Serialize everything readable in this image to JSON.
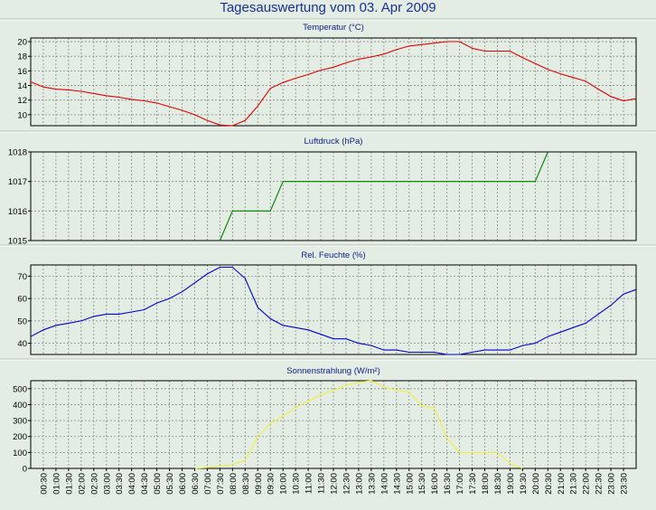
{
  "title": "Tagesauswertung vom 03. Apr 2009",
  "colors": {
    "background": "#e3ede3",
    "grid": "#8a8a8a",
    "temperature": "#e00000",
    "pressure": "#008000",
    "humidity": "#0000d0",
    "radiation": "#f0f040",
    "title": "#1a2d9c"
  },
  "chart_data": [
    {
      "type": "line",
      "title": "Temperatur (°C)",
      "ylim": [
        8.5,
        20.5
      ],
      "yticks": [
        10,
        12,
        14,
        16,
        18,
        20
      ],
      "color": "#e00000",
      "x": [
        0,
        0.5,
        1,
        1.5,
        2,
        2.5,
        3,
        3.5,
        4,
        4.5,
        5,
        5.5,
        6,
        6.5,
        7,
        7.5,
        8,
        8.5,
        9,
        9.5,
        10,
        10.5,
        11,
        11.5,
        12,
        12.5,
        13,
        13.5,
        14,
        14.5,
        15,
        15.5,
        16,
        16.5,
        17,
        17.5,
        18,
        18.5,
        19,
        19.5,
        20,
        20.5,
        21,
        21.5,
        22,
        22.5,
        23,
        23.5,
        24
      ],
      "values": [
        14.5,
        13.8,
        13.5,
        13.4,
        13.2,
        12.9,
        12.6,
        12.4,
        12.1,
        11.9,
        11.6,
        11.1,
        10.6,
        10.0,
        9.2,
        8.6,
        8.5,
        9.2,
        11.2,
        13.6,
        14.4,
        15.0,
        15.5,
        16.1,
        16.5,
        17.1,
        17.6,
        17.9,
        18.3,
        18.9,
        19.4,
        19.6,
        19.8,
        20.0,
        20.0,
        19.1,
        18.7,
        18.7,
        18.7,
        17.8,
        17.0,
        16.2,
        15.6,
        15.1,
        14.6,
        13.5,
        12.5,
        11.9,
        12.2
      ]
    },
    {
      "type": "line",
      "title": "Luftdruck (hPa)",
      "ylim": [
        1015,
        1018
      ],
      "yticks": [
        1015,
        1016,
        1017,
        1018
      ],
      "color": "#008000",
      "x": [
        7.5,
        8,
        9.5,
        10,
        20,
        20.5
      ],
      "values": [
        1015,
        1016,
        1016,
        1017,
        1017,
        1018
      ]
    },
    {
      "type": "line",
      "title": "Rel. Feuchte (%)",
      "ylim": [
        35,
        75
      ],
      "yticks": [
        40,
        50,
        60,
        70
      ],
      "color": "#0000d0",
      "x": [
        0,
        0.5,
        1,
        1.5,
        2,
        2.5,
        3,
        3.5,
        4,
        4.5,
        5,
        5.5,
        6,
        6.5,
        7,
        7.5,
        8,
        8.5,
        9,
        9.5,
        10,
        10.5,
        11,
        11.5,
        12,
        12.5,
        13,
        13.5,
        14,
        14.5,
        15,
        15.5,
        16,
        16.5,
        17,
        17.5,
        18,
        18.5,
        19,
        19.5,
        20,
        20.5,
        21,
        21.5,
        22,
        22.5,
        23,
        23.5,
        24
      ],
      "values": [
        43,
        46,
        48,
        49,
        50,
        52,
        53,
        53,
        54,
        55,
        58,
        60,
        63,
        67,
        71,
        74,
        74,
        69,
        56,
        51,
        48,
        47,
        46,
        44,
        42,
        42,
        40,
        39,
        37,
        37,
        36,
        36,
        36,
        35,
        35,
        36,
        37,
        37,
        37,
        39,
        40,
        43,
        45,
        47,
        49,
        53,
        57,
        62,
        64
      ]
    },
    {
      "type": "line",
      "title": "Sonnenstrahlung (W/m²)",
      "ylim": [
        0,
        550
      ],
      "yticks": [
        0,
        100,
        200,
        300,
        400,
        500
      ],
      "color": "#f0f040",
      "x": [
        6.5,
        7,
        7.5,
        8,
        8.5,
        9,
        9.5,
        10,
        10.5,
        11,
        11.5,
        12,
        12.5,
        13,
        13.5,
        14,
        14.5,
        15,
        15.5,
        16,
        16.5,
        17,
        17.5,
        18,
        18.5,
        19,
        19.5
      ],
      "values": [
        0,
        5,
        15,
        25,
        50,
        200,
        280,
        330,
        380,
        420,
        460,
        490,
        520,
        540,
        550,
        510,
        490,
        480,
        390,
        380,
        190,
        100,
        100,
        100,
        100,
        30,
        0
      ]
    }
  ],
  "x_ticks": [
    "00:30",
    "01:00",
    "01:30",
    "02:00",
    "02:30",
    "03:00",
    "03:30",
    "04:00",
    "04:30",
    "05:00",
    "05:30",
    "06:00",
    "06:30",
    "07:00",
    "07:30",
    "08:00",
    "08:30",
    "09:00",
    "09:30",
    "10:00",
    "10:30",
    "11:00",
    "11:30",
    "12:00",
    "12:30",
    "13:00",
    "13:30",
    "14:00",
    "14:30",
    "15:00",
    "15:30",
    "16:00",
    "16:30",
    "17:00",
    "17:30",
    "18:00",
    "18:30",
    "19:00",
    "19:30",
    "20:00",
    "20:30",
    "21:00",
    "21:30",
    "22:00",
    "22:30",
    "23:00",
    "23:30"
  ]
}
